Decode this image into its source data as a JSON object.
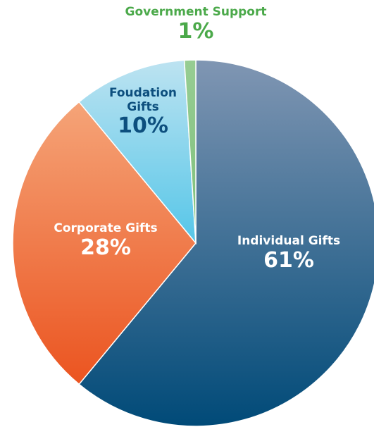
{
  "chart_data": {
    "type": "pie",
    "categories": [
      "Individual Gifts",
      "Corporate Gifts",
      "Foudation Gifts",
      "Government Support"
    ],
    "values": [
      61,
      28,
      10,
      1
    ],
    "value_labels": [
      "61%",
      "28%",
      "10%",
      "1%"
    ],
    "colors": [
      [
        "#8096b3",
        "#004a78"
      ],
      [
        "#f5a478",
        "#eb5420"
      ],
      [
        "#bde3f1",
        "#55c6e8"
      ],
      [
        "#97cd93",
        "#7dbf7a"
      ]
    ],
    "label_colors": [
      "#ffffff",
      "#ffffff",
      "#0d4f7e",
      "#4ba94a"
    ]
  }
}
